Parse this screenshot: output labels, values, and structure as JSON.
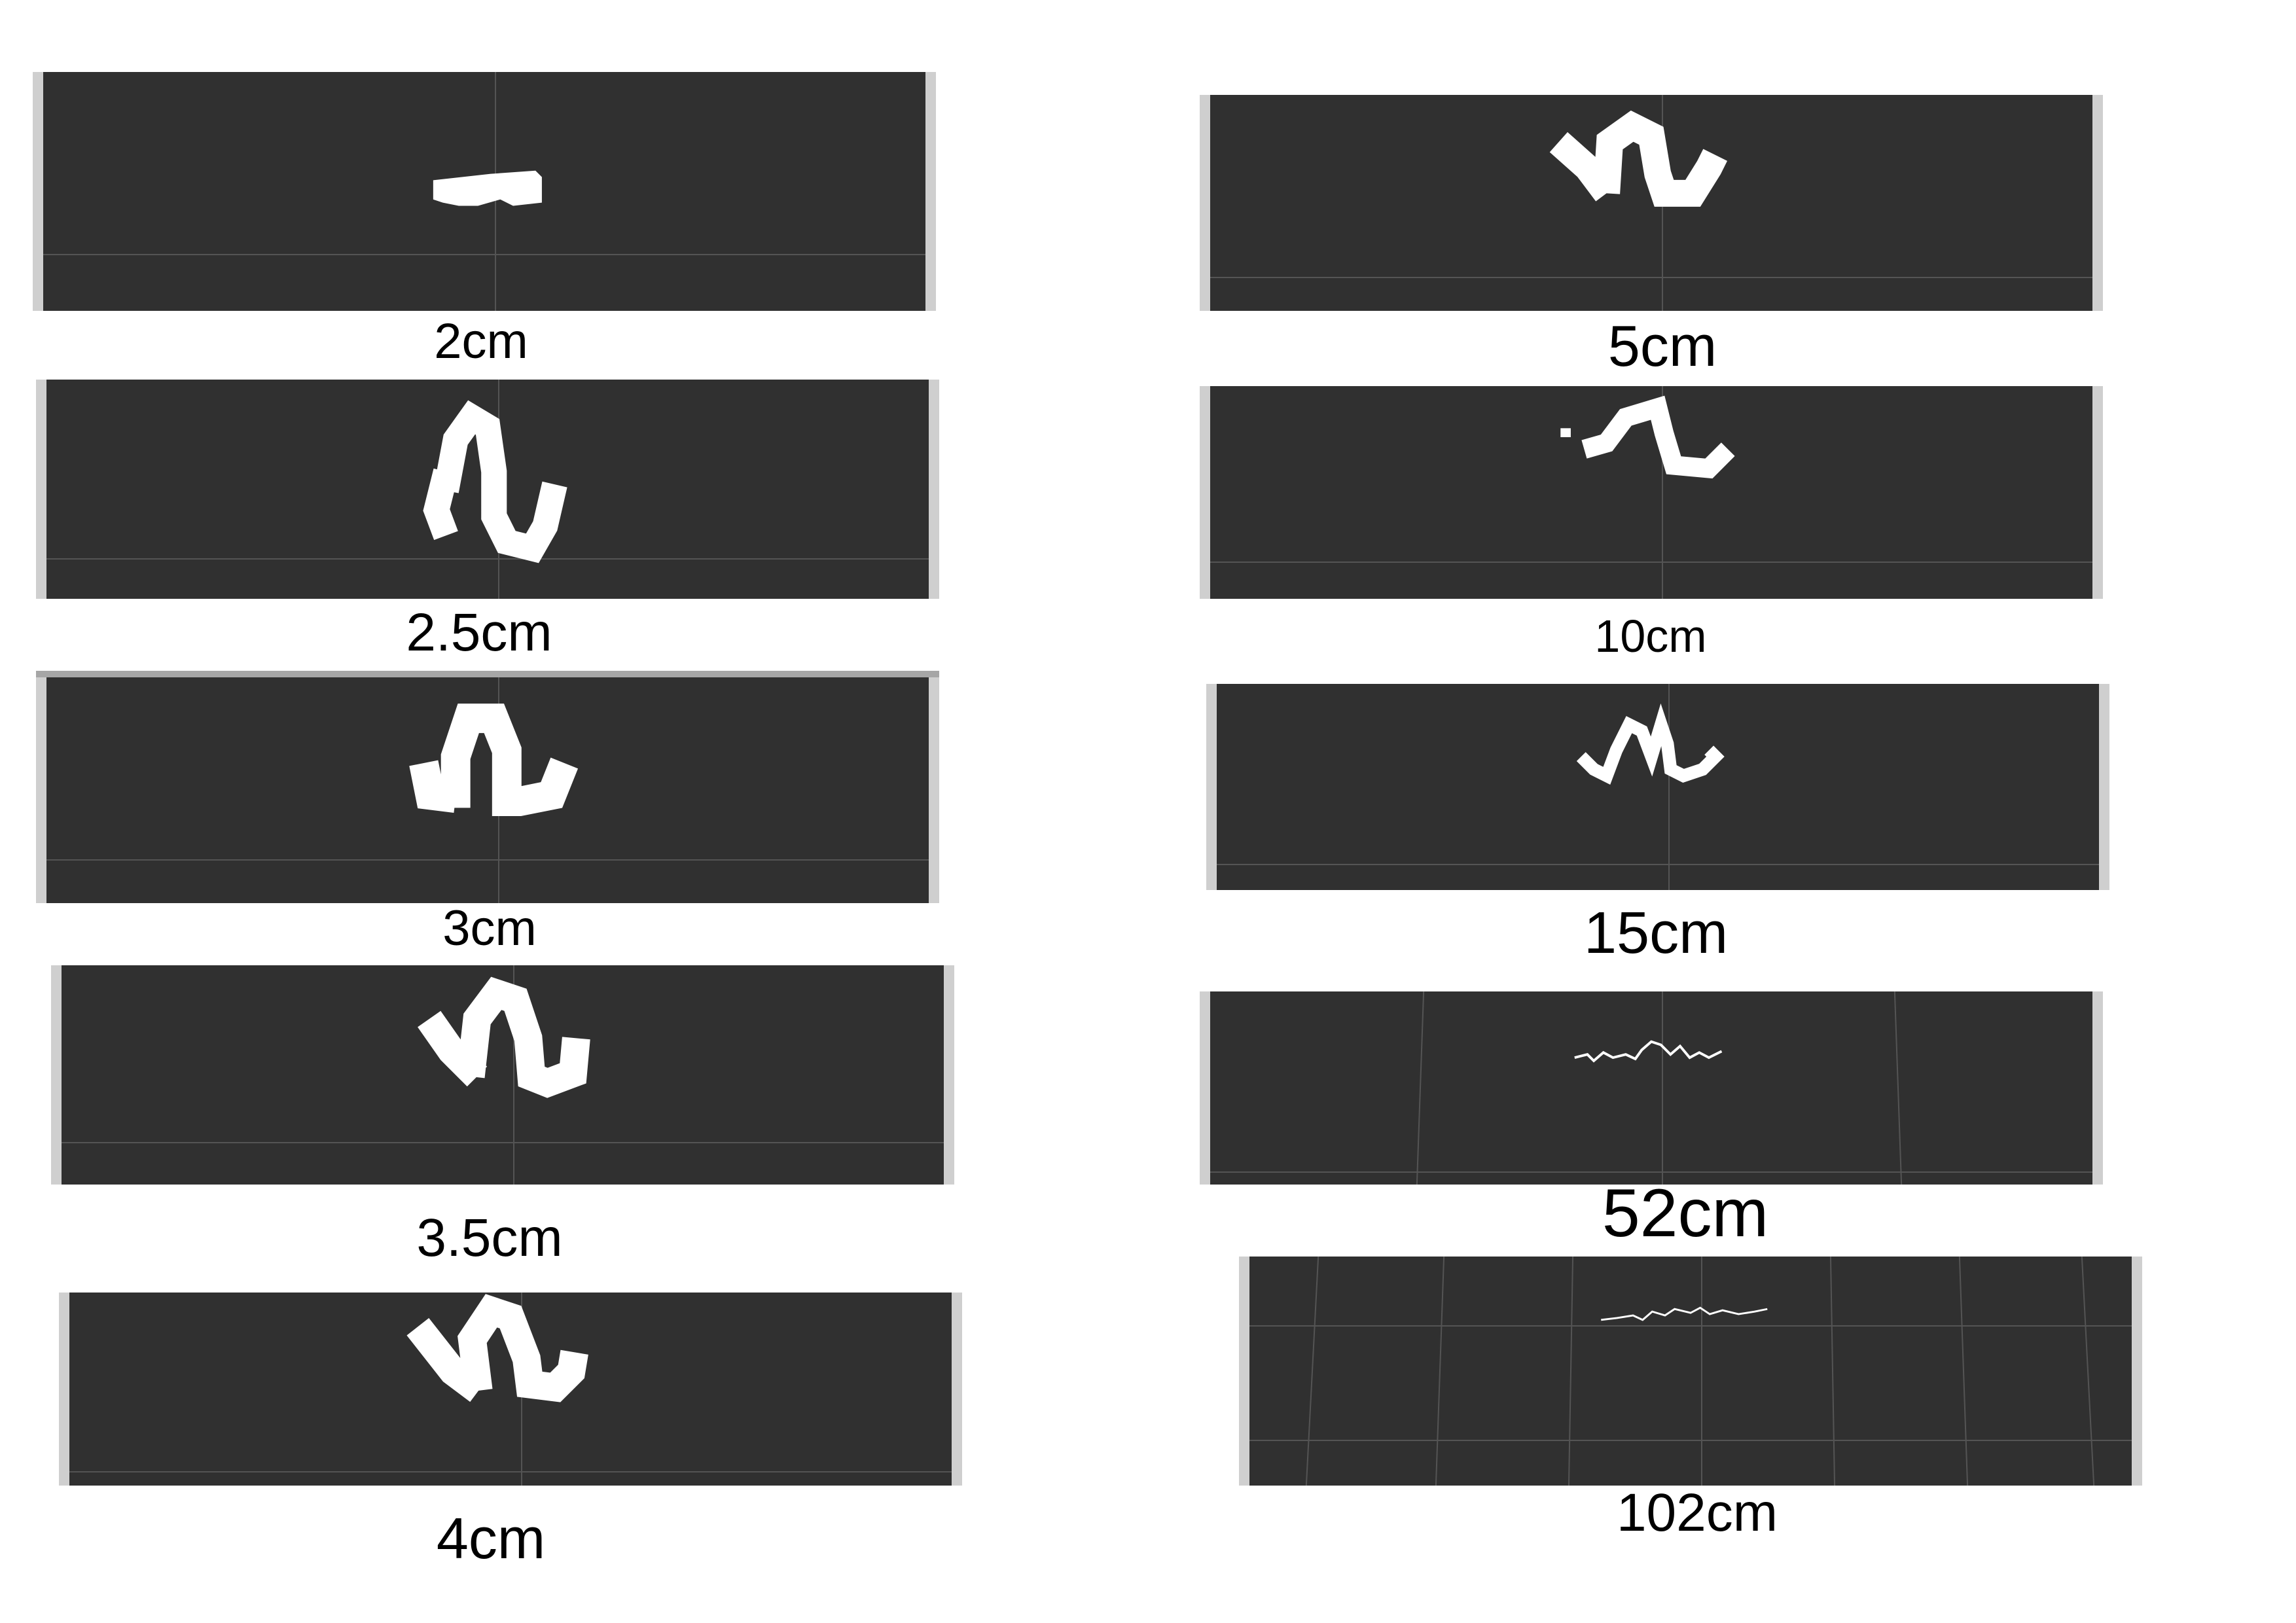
{
  "panels": {
    "p2": {
      "caption": "2cm",
      "icon": "scan-shape-icon"
    },
    "p2_5": {
      "caption": "2.5cm",
      "icon": "scan-shape-icon"
    },
    "p3": {
      "caption": "3cm",
      "icon": "scan-shape-icon"
    },
    "p3_5": {
      "caption": "3.5cm",
      "icon": "scan-shape-icon"
    },
    "p4": {
      "caption": "4cm",
      "icon": "scan-shape-icon"
    },
    "p5": {
      "caption": "5cm",
      "icon": "scan-shape-icon"
    },
    "p10": {
      "caption": "10cm",
      "icon": "scan-shape-icon"
    },
    "p15": {
      "caption": "15cm",
      "icon": "scan-shape-icon"
    },
    "p52": {
      "caption": "52cm",
      "icon": "scan-shape-icon"
    },
    "p102": {
      "caption": "102cm",
      "icon": "scan-shape-icon"
    }
  },
  "colors": {
    "background": "#303030",
    "shape": "#ffffff",
    "gridline": "#545454",
    "frame": "#cfcfcf"
  }
}
